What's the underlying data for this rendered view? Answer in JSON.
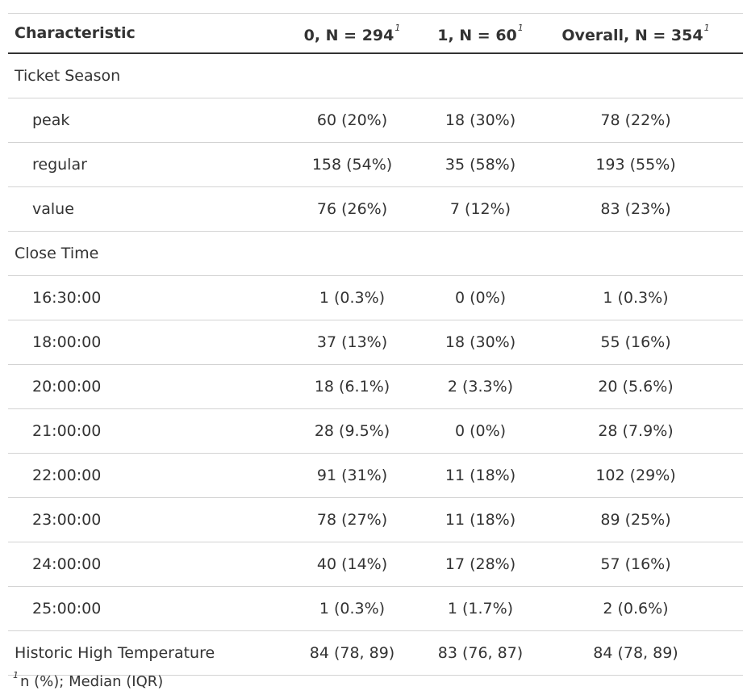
{
  "table": {
    "headers": [
      {
        "label": "Characteristic",
        "footnote": ""
      },
      {
        "label": "0, N = 294",
        "footnote": "1"
      },
      {
        "label": "1, N = 60",
        "footnote": "1"
      },
      {
        "label": "Overall, N = 354",
        "footnote": "1"
      }
    ],
    "rows": [
      {
        "label": "Ticket Season",
        "indent": false,
        "values": [
          "",
          "",
          ""
        ]
      },
      {
        "label": "peak",
        "indent": true,
        "values": [
          "60 (20%)",
          "18 (30%)",
          "78 (22%)"
        ]
      },
      {
        "label": "regular",
        "indent": true,
        "values": [
          "158 (54%)",
          "35 (58%)",
          "193 (55%)"
        ]
      },
      {
        "label": "value",
        "indent": true,
        "values": [
          "76 (26%)",
          "7 (12%)",
          "83 (23%)"
        ]
      },
      {
        "label": "Close Time",
        "indent": false,
        "values": [
          "",
          "",
          ""
        ]
      },
      {
        "label": "16:30:00",
        "indent": true,
        "values": [
          "1 (0.3%)",
          "0 (0%)",
          "1 (0.3%)"
        ]
      },
      {
        "label": "18:00:00",
        "indent": true,
        "values": [
          "37 (13%)",
          "18 (30%)",
          "55 (16%)"
        ]
      },
      {
        "label": "20:00:00",
        "indent": true,
        "values": [
          "18 (6.1%)",
          "2 (3.3%)",
          "20 (5.6%)"
        ]
      },
      {
        "label": "21:00:00",
        "indent": true,
        "values": [
          "28 (9.5%)",
          "0 (0%)",
          "28 (7.9%)"
        ]
      },
      {
        "label": "22:00:00",
        "indent": true,
        "values": [
          "91 (31%)",
          "11 (18%)",
          "102 (29%)"
        ]
      },
      {
        "label": "23:00:00",
        "indent": true,
        "values": [
          "78 (27%)",
          "11 (18%)",
          "89 (25%)"
        ]
      },
      {
        "label": "24:00:00",
        "indent": true,
        "values": [
          "40 (14%)",
          "17 (28%)",
          "57 (16%)"
        ]
      },
      {
        "label": "25:00:00",
        "indent": true,
        "values": [
          "1 (0.3%)",
          "1 (1.7%)",
          "2 (0.6%)"
        ]
      },
      {
        "label": "Historic High Temperature",
        "indent": false,
        "values": [
          "84 (78, 89)",
          "83 (76, 87)",
          "84 (78, 89)"
        ]
      }
    ]
  },
  "footnote": {
    "marker": "1",
    "text": "n (%); Median (IQR)"
  }
}
